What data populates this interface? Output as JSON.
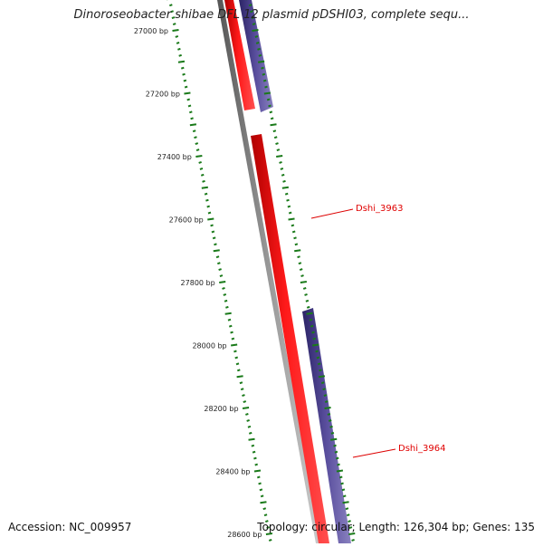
{
  "title": "Dinoroseobacter shibae DFL 12 plasmid pDSHI03, complete sequ...",
  "footer": {
    "accession": "Accession: NC_009957",
    "summary": "Topology: circular; Length: 126,304 bp; Genes: 135"
  },
  "ticks": [
    {
      "label": "27000 bp",
      "bp": 27000
    },
    {
      "label": "27200 bp",
      "bp": 27200
    },
    {
      "label": "27400 bp",
      "bp": 27400
    },
    {
      "label": "27600 bp",
      "bp": 27600
    },
    {
      "label": "27800 bp",
      "bp": 27800
    },
    {
      "label": "28000 bp",
      "bp": 28000
    },
    {
      "label": "28200 bp",
      "bp": 28200
    },
    {
      "label": "28400 bp",
      "bp": 28400
    },
    {
      "label": "28600 bp",
      "bp": 28600
    }
  ],
  "genes": [
    {
      "name": "Dshi_3963",
      "color": "#e00000"
    },
    {
      "name": "Dshi_3964",
      "color": "#e00000"
    }
  ],
  "colors": {
    "forward_feature": "#ff0000",
    "reverse_feature": "#4a3f8c",
    "backbone": "#888888",
    "ticks": "#1a7a1a",
    "label": "#dd0000"
  }
}
